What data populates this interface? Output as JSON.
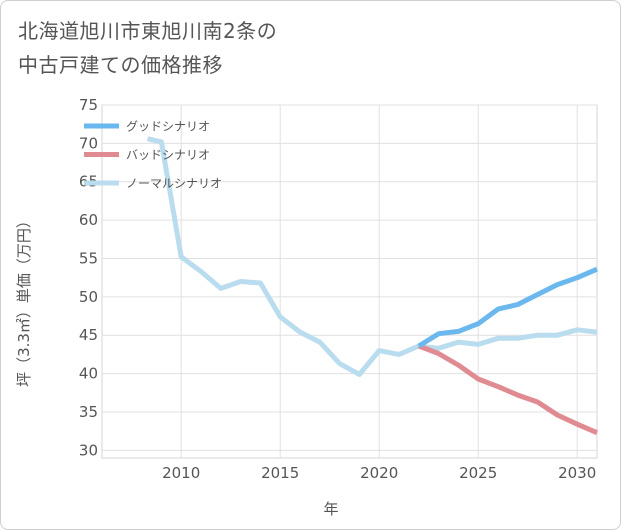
{
  "title_lines": [
    "北海道旭川市東旭川南2条の",
    "中古戸建ての価格推移"
  ],
  "chart_data": {
    "type": "line",
    "title": "北海道旭川市東旭川南2条の中古戸建ての価格推移",
    "xlabel": "年",
    "ylabel": "坪（3.3㎡）単価（万円）",
    "xlim": [
      2006,
      2031
    ],
    "ylim": [
      29,
      75
    ],
    "x_ticks": [
      2010,
      2015,
      2020,
      2025,
      2030
    ],
    "y_ticks": [
      30,
      35,
      40,
      45,
      50,
      55,
      60,
      65,
      70,
      75
    ],
    "grid": true,
    "legend_position": "top-left",
    "series": [
      {
        "name": "グッドシナリオ",
        "color": "#6bb8ee",
        "x": [
          2022,
          2023,
          2024,
          2025,
          2026,
          2027,
          2028,
          2029,
          2030,
          2031
        ],
        "y": [
          43.6,
          45.2,
          45.5,
          46.5,
          48.4,
          49.0,
          50.3,
          51.6,
          52.5,
          53.6
        ]
      },
      {
        "name": "バッドシナリオ",
        "color": "#e08a92",
        "x": [
          2022,
          2023,
          2024,
          2025,
          2026,
          2027,
          2028,
          2029,
          2030,
          2031
        ],
        "y": [
          43.6,
          42.6,
          41.1,
          39.3,
          38.3,
          37.2,
          36.3,
          34.6,
          33.4,
          32.3
        ]
      },
      {
        "name": "ノーマルシナリオ",
        "color": "#b9dcee",
        "x": [
          2008.3,
          2009,
          2010,
          2011,
          2012,
          2013,
          2014,
          2015,
          2016,
          2017,
          2018,
          2019,
          2020,
          2021,
          2022,
          2023,
          2024,
          2025,
          2026,
          2027,
          2028,
          2029,
          2030,
          2031
        ],
        "y": [
          70.6,
          70.2,
          55.2,
          53.3,
          51.1,
          52.0,
          51.8,
          47.4,
          45.4,
          44.1,
          41.3,
          39.9,
          43.0,
          42.5,
          43.6,
          43.3,
          44.1,
          43.8,
          44.6,
          44.6,
          45.0,
          45.0,
          45.7,
          45.4
        ]
      }
    ]
  }
}
